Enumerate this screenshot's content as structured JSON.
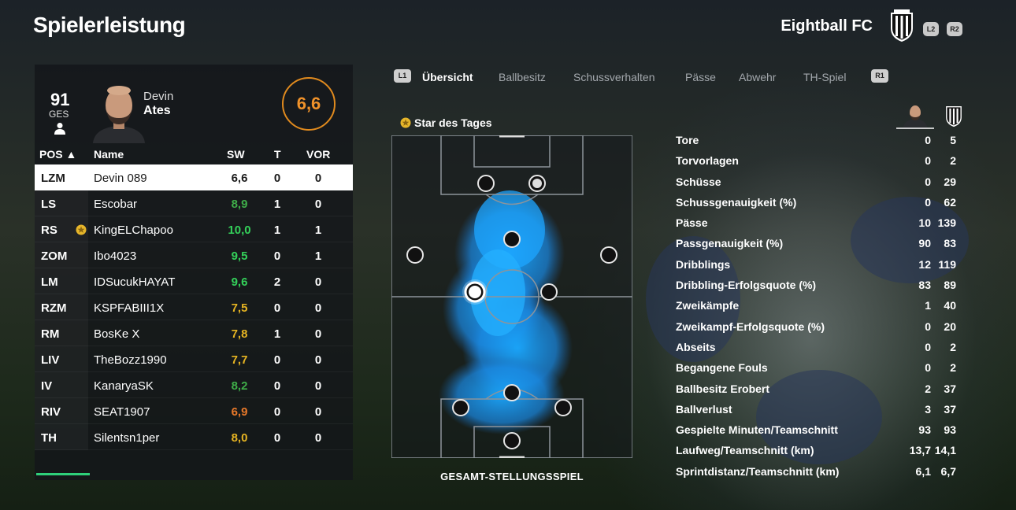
{
  "header": {
    "title": "Spielerleistung",
    "club_name": "Eightball FC",
    "left_trigger": "L2",
    "right_trigger": "R2"
  },
  "player": {
    "overall": "91",
    "overall_label": "GES",
    "first_name": "Devin",
    "last_name": "Ates",
    "match_rating": "6,6"
  },
  "table": {
    "columns": [
      "POS ▲",
      "Name",
      "SW",
      "T",
      "VOR"
    ],
    "rows": [
      {
        "pos": "LZM",
        "name": "Devin 089",
        "sw": "6,6",
        "t": "0",
        "vor": "0",
        "color": "#1a1a1a",
        "selected": true
      },
      {
        "pos": "LS",
        "name": "Escobar",
        "sw": "8,9",
        "t": "1",
        "vor": "0",
        "color": "#3fae49"
      },
      {
        "pos": "RS",
        "name": "KingELChapoo",
        "sw": "10,0",
        "t": "1",
        "vor": "1",
        "color": "#34d15a",
        "star": true
      },
      {
        "pos": "ZOM",
        "name": "Ibo4023",
        "sw": "9,5",
        "t": "0",
        "vor": "1",
        "color": "#34d15a"
      },
      {
        "pos": "LM",
        "name": "IDSucukHAYAT",
        "sw": "9,6",
        "t": "2",
        "vor": "0",
        "color": "#34d15a"
      },
      {
        "pos": "RZM",
        "name": "KSPFABIII1X",
        "sw": "7,5",
        "t": "0",
        "vor": "0",
        "color": "#e6b422"
      },
      {
        "pos": "RM",
        "name": "BosKe X",
        "sw": "7,8",
        "t": "1",
        "vor": "0",
        "color": "#e6b422"
      },
      {
        "pos": "LIV",
        "name": "TheBozz1990",
        "sw": "7,7",
        "t": "0",
        "vor": "0",
        "color": "#e6b422"
      },
      {
        "pos": "IV",
        "name": "KanaryaSK",
        "sw": "8,2",
        "t": "0",
        "vor": "0",
        "color": "#3fae49"
      },
      {
        "pos": "RIV",
        "name": "SEAT1907",
        "sw": "6,9",
        "t": "0",
        "vor": "0",
        "color": "#e8792a"
      },
      {
        "pos": "TH",
        "name": "Silentsn1per",
        "sw": "8,0",
        "t": "0",
        "vor": "0",
        "color": "#e6b422"
      }
    ]
  },
  "tabs": {
    "left_button": "L1",
    "right_button": "R1",
    "items": [
      "Übersicht",
      "Ballbesitz",
      "Schussverhalten",
      "Pässe",
      "Abwehr",
      "TH-Spiel"
    ]
  },
  "pitch": {
    "star_label": "Star des Tages",
    "caption": "GESAMT-STELLUNGSSPIEL"
  },
  "stats": [
    {
      "label": "Tore",
      "player": "0",
      "team": "5"
    },
    {
      "label": "Torvorlagen",
      "player": "0",
      "team": "2"
    },
    {
      "label": "Schüsse",
      "player": "0",
      "team": "29"
    },
    {
      "label": "Schussgenauigkeit (%)",
      "player": "0",
      "team": "62"
    },
    {
      "label": "Pässe",
      "player": "10",
      "team": "139"
    },
    {
      "label": "Passgenauigkeit (%)",
      "player": "90",
      "team": "83"
    },
    {
      "label": "Dribblings",
      "player": "12",
      "team": "119"
    },
    {
      "label": "Dribbling-Erfolgsquote (%)",
      "player": "83",
      "team": "89"
    },
    {
      "label": "Zweikämpfe",
      "player": "1",
      "team": "40"
    },
    {
      "label": "Zweikampf-Erfolgsquote (%)",
      "player": "0",
      "team": "20"
    },
    {
      "label": "Abseits",
      "player": "0",
      "team": "2"
    },
    {
      "label": "Begangene Fouls",
      "player": "0",
      "team": "2"
    },
    {
      "label": "Ballbesitz Erobert",
      "player": "2",
      "team": "37"
    },
    {
      "label": "Ballverlust",
      "player": "3",
      "team": "37"
    },
    {
      "label": "Gespielte Minuten/Teamschnitt",
      "player": "93",
      "team": "93"
    },
    {
      "label": "Laufweg/Teamschnitt (km)",
      "player": "13,7",
      "team": "14,1"
    },
    {
      "label": "Sprintdistanz/Teamschnitt (km)",
      "player": "6,1",
      "team": "6,7"
    }
  ]
}
